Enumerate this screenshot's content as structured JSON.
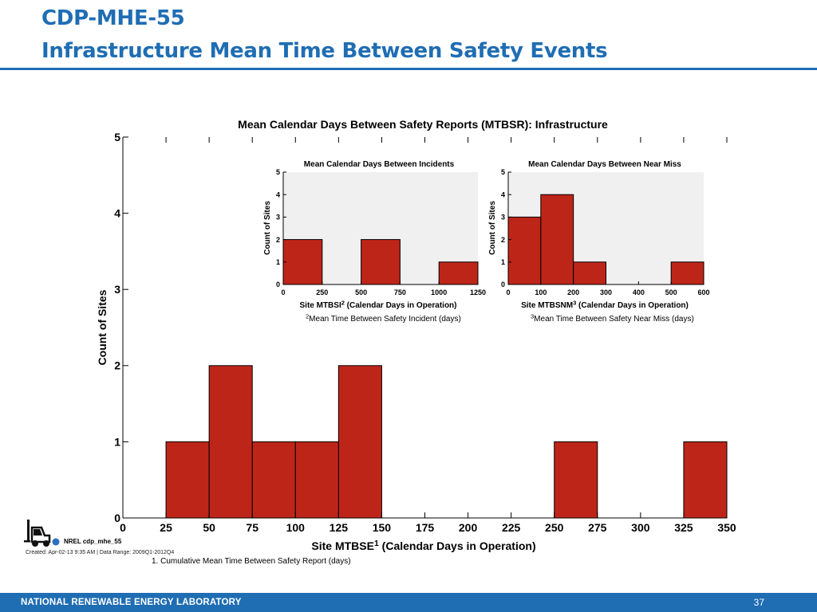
{
  "slide": {
    "title_line1": "CDP-MHE-55",
    "title_line2": "Infrastructure Mean Time Between Safety Events",
    "footer_lab": "NATIONAL RENEWABLE ENERGY LABORATORY",
    "page_number": "37",
    "logo_text": "NREL cdp_mhe_55",
    "created_note": "Created: Apr-02-13  9:35 AM | Data Range: 2009Q1-2012Q4",
    "colors": {
      "title": "#1f6db3",
      "footer": "#1f6db3",
      "bar": "#be2519",
      "inset_bg": "#f0f0f0"
    },
    "logo_icon": "forklift-icon"
  },
  "chart_data": [
    {
      "id": "main",
      "type": "bar",
      "title": "Mean Calendar Days Between Safety Reports (MTBSR): Infrastructure",
      "xlabel": "Site MTBSE",
      "xlabel_sup": "1",
      "xlabel_suffix": " (Calendar Days in Operation)",
      "ylabel": "Count of Sites",
      "footnote": "1. Cumulative Mean Time Between Safety Report (days)",
      "bin_width": 25,
      "bins": [
        {
          "x0": 25,
          "x1": 50,
          "count": 1
        },
        {
          "x0": 50,
          "x1": 75,
          "count": 2
        },
        {
          "x0": 75,
          "x1": 100,
          "count": 1
        },
        {
          "x0": 100,
          "x1": 125,
          "count": 1
        },
        {
          "x0": 125,
          "x1": 150,
          "count": 2
        },
        {
          "x0": 250,
          "x1": 275,
          "count": 1
        },
        {
          "x0": 325,
          "x1": 350,
          "count": 1
        }
      ],
      "xlim": [
        0,
        350
      ],
      "ylim": [
        0,
        5
      ],
      "xticks": [
        0,
        25,
        50,
        75,
        100,
        125,
        150,
        175,
        200,
        225,
        250,
        275,
        300,
        325,
        350
      ],
      "yticks": [
        0,
        1,
        2,
        3,
        4,
        5
      ],
      "grid": false
    },
    {
      "id": "incidents",
      "type": "bar",
      "title": "Mean Calendar Days Between Incidents",
      "xlabel": "Site MTBSI",
      "xlabel_sup": "2",
      "xlabel_suffix": " (Calendar Days in Operation)",
      "ylabel": "Count of Sites",
      "footnote_sup": "2",
      "footnote": "Mean Time Between Safety Incident (days)",
      "bins": [
        {
          "x0": 0,
          "x1": 250,
          "count": 2
        },
        {
          "x0": 500,
          "x1": 750,
          "count": 2
        },
        {
          "x0": 1000,
          "x1": 1250,
          "count": 1
        }
      ],
      "xlim": [
        0,
        1250
      ],
      "ylim": [
        0,
        5
      ],
      "xticks": [
        0,
        250,
        500,
        750,
        1000,
        1250
      ],
      "yticks": [
        0,
        1,
        2,
        3,
        4,
        5
      ],
      "grid": false
    },
    {
      "id": "nearmiss",
      "type": "bar",
      "title": "Mean Calendar Days Between Near Miss",
      "xlabel": "Site MTBSNM",
      "xlabel_sup": "3",
      "xlabel_suffix": " (Calendar Days in Operation)",
      "ylabel": "Count of Sites",
      "footnote_sup": "3",
      "footnote": "Mean Time Between Safety Near Miss (days)",
      "bins": [
        {
          "x0": 0,
          "x1": 100,
          "count": 3
        },
        {
          "x0": 100,
          "x1": 200,
          "count": 4
        },
        {
          "x0": 200,
          "x1": 300,
          "count": 1
        },
        {
          "x0": 500,
          "x1": 600,
          "count": 1
        }
      ],
      "xlim": [
        0,
        600
      ],
      "ylim": [
        0,
        5
      ],
      "xticks": [
        0,
        100,
        200,
        300,
        400,
        500,
        600
      ],
      "yticks": [
        0,
        1,
        2,
        3,
        4,
        5
      ],
      "grid": false
    }
  ]
}
